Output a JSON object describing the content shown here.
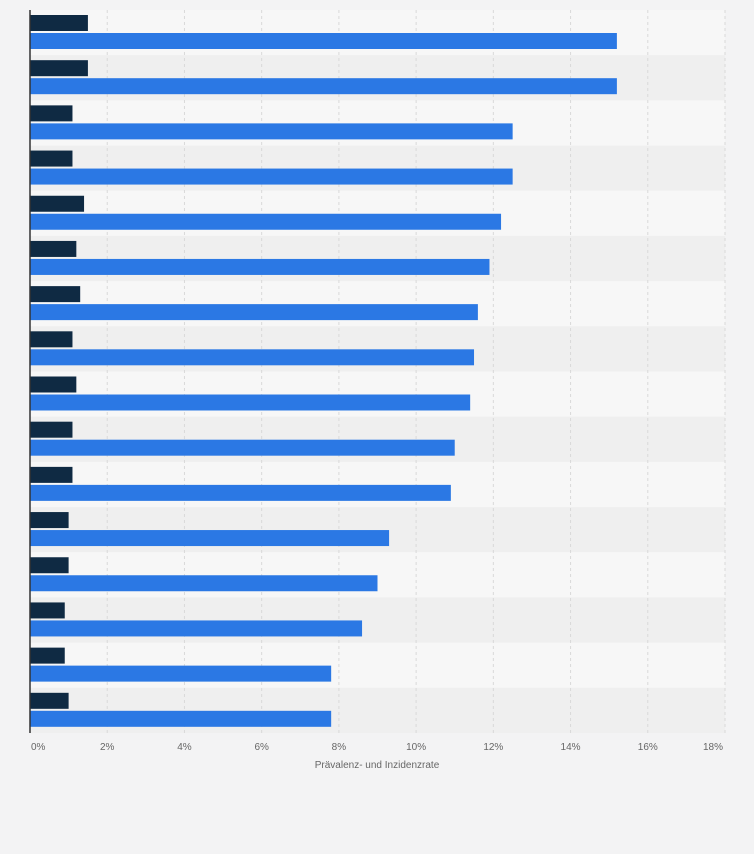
{
  "chart_data": {
    "type": "bar",
    "orientation": "horizontal",
    "categories": [
      "",
      "",
      "",
      "",
      "",
      "",
      "",
      "",
      "",
      "",
      "",
      "",
      "",
      "",
      "",
      ""
    ],
    "series": [
      {
        "color": "#0f2a43",
        "values": [
          1.5,
          1.5,
          1.1,
          1.1,
          1.4,
          1.2,
          1.3,
          1.1,
          1.2,
          1.1,
          1.1,
          1.0,
          1.0,
          0.9,
          0.9,
          1.0
        ]
      },
      {
        "color": "#2b78e4",
        "values": [
          15.2,
          15.2,
          12.5,
          12.5,
          12.2,
          11.9,
          11.6,
          11.5,
          11.4,
          11.0,
          10.9,
          9.3,
          9.0,
          8.6,
          7.8,
          7.8
        ]
      }
    ],
    "xlim": [
      0,
      18
    ],
    "ticks": [
      "0%",
      "2%",
      "4%",
      "6%",
      "8%",
      "10%",
      "12%",
      "14%",
      "16%",
      "18%"
    ],
    "xlabel": "Prävalenz- und Inzidenzrate",
    "grid": true,
    "legend": "none"
  },
  "colors": {
    "background": "#f3f3f4",
    "band_light": "#f7f7f7",
    "band_dark": "#efefef",
    "grid": "#d9d9d9",
    "axis": "#333333",
    "text": "#666666"
  }
}
